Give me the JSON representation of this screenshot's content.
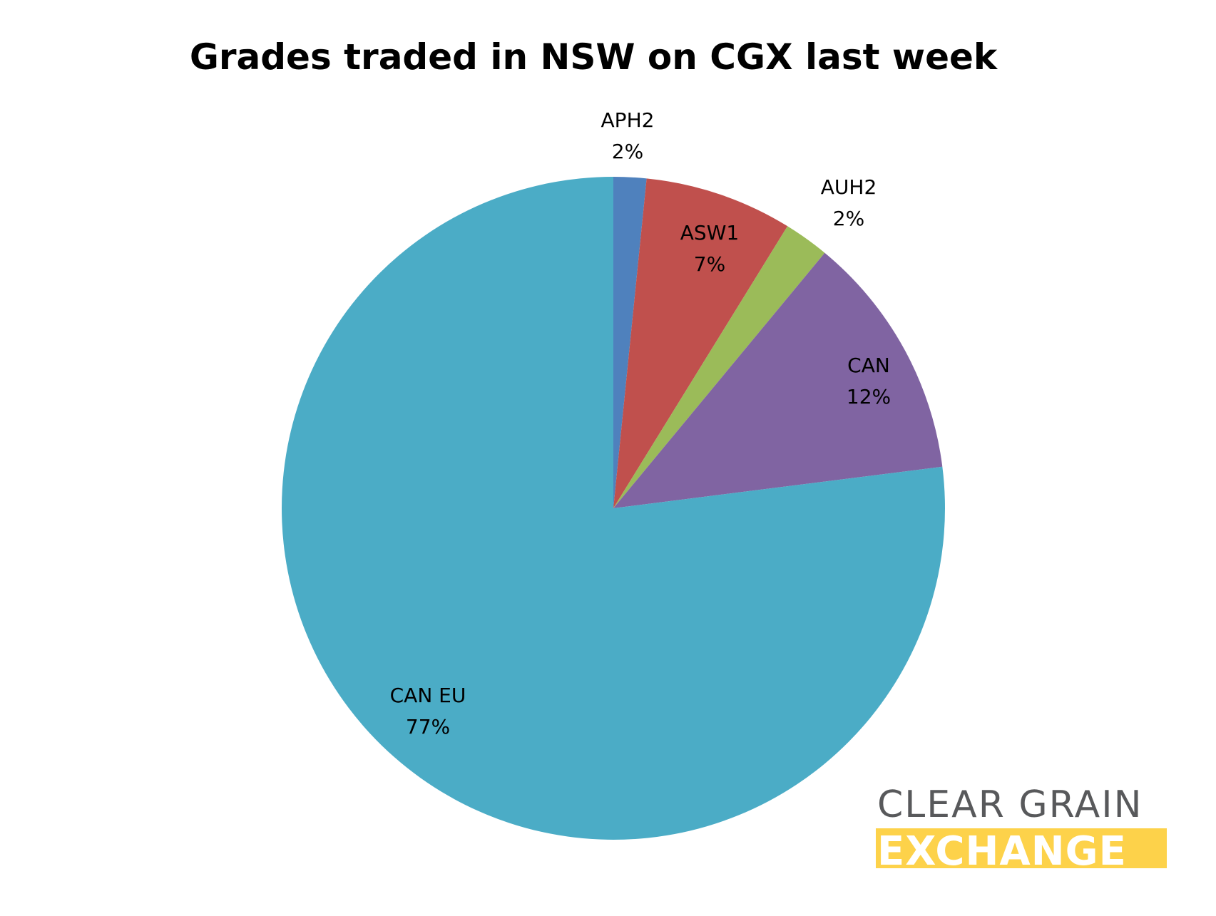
{
  "chart_data": {
    "type": "pie",
    "title": "Grades traded in NSW on CGX last week",
    "slices": [
      {
        "name": "APH2",
        "label": "2%",
        "value": 1.6,
        "color": "#4F81BD"
      },
      {
        "name": "ASW1",
        "label": "7%",
        "value": 7.2,
        "color": "#C0504D"
      },
      {
        "name": "AUH2",
        "label": "2%",
        "value": 2.2,
        "color": "#9BBB59"
      },
      {
        "name": "CAN",
        "label": "12%",
        "value": 12.0,
        "color": "#8064A2"
      },
      {
        "name": "CAN EU",
        "label": "77%",
        "value": 77.0,
        "color": "#4BACC6"
      }
    ],
    "start_angle": "12 o'clock",
    "direction": "clockwise",
    "legend": "none"
  },
  "logo": {
    "line1": "CLEAR GRAIN",
    "line2": "EXCHANGE",
    "line1_color": "#58595B",
    "line2_color": "#FFFFFF",
    "band_color": "#FDD24A"
  }
}
